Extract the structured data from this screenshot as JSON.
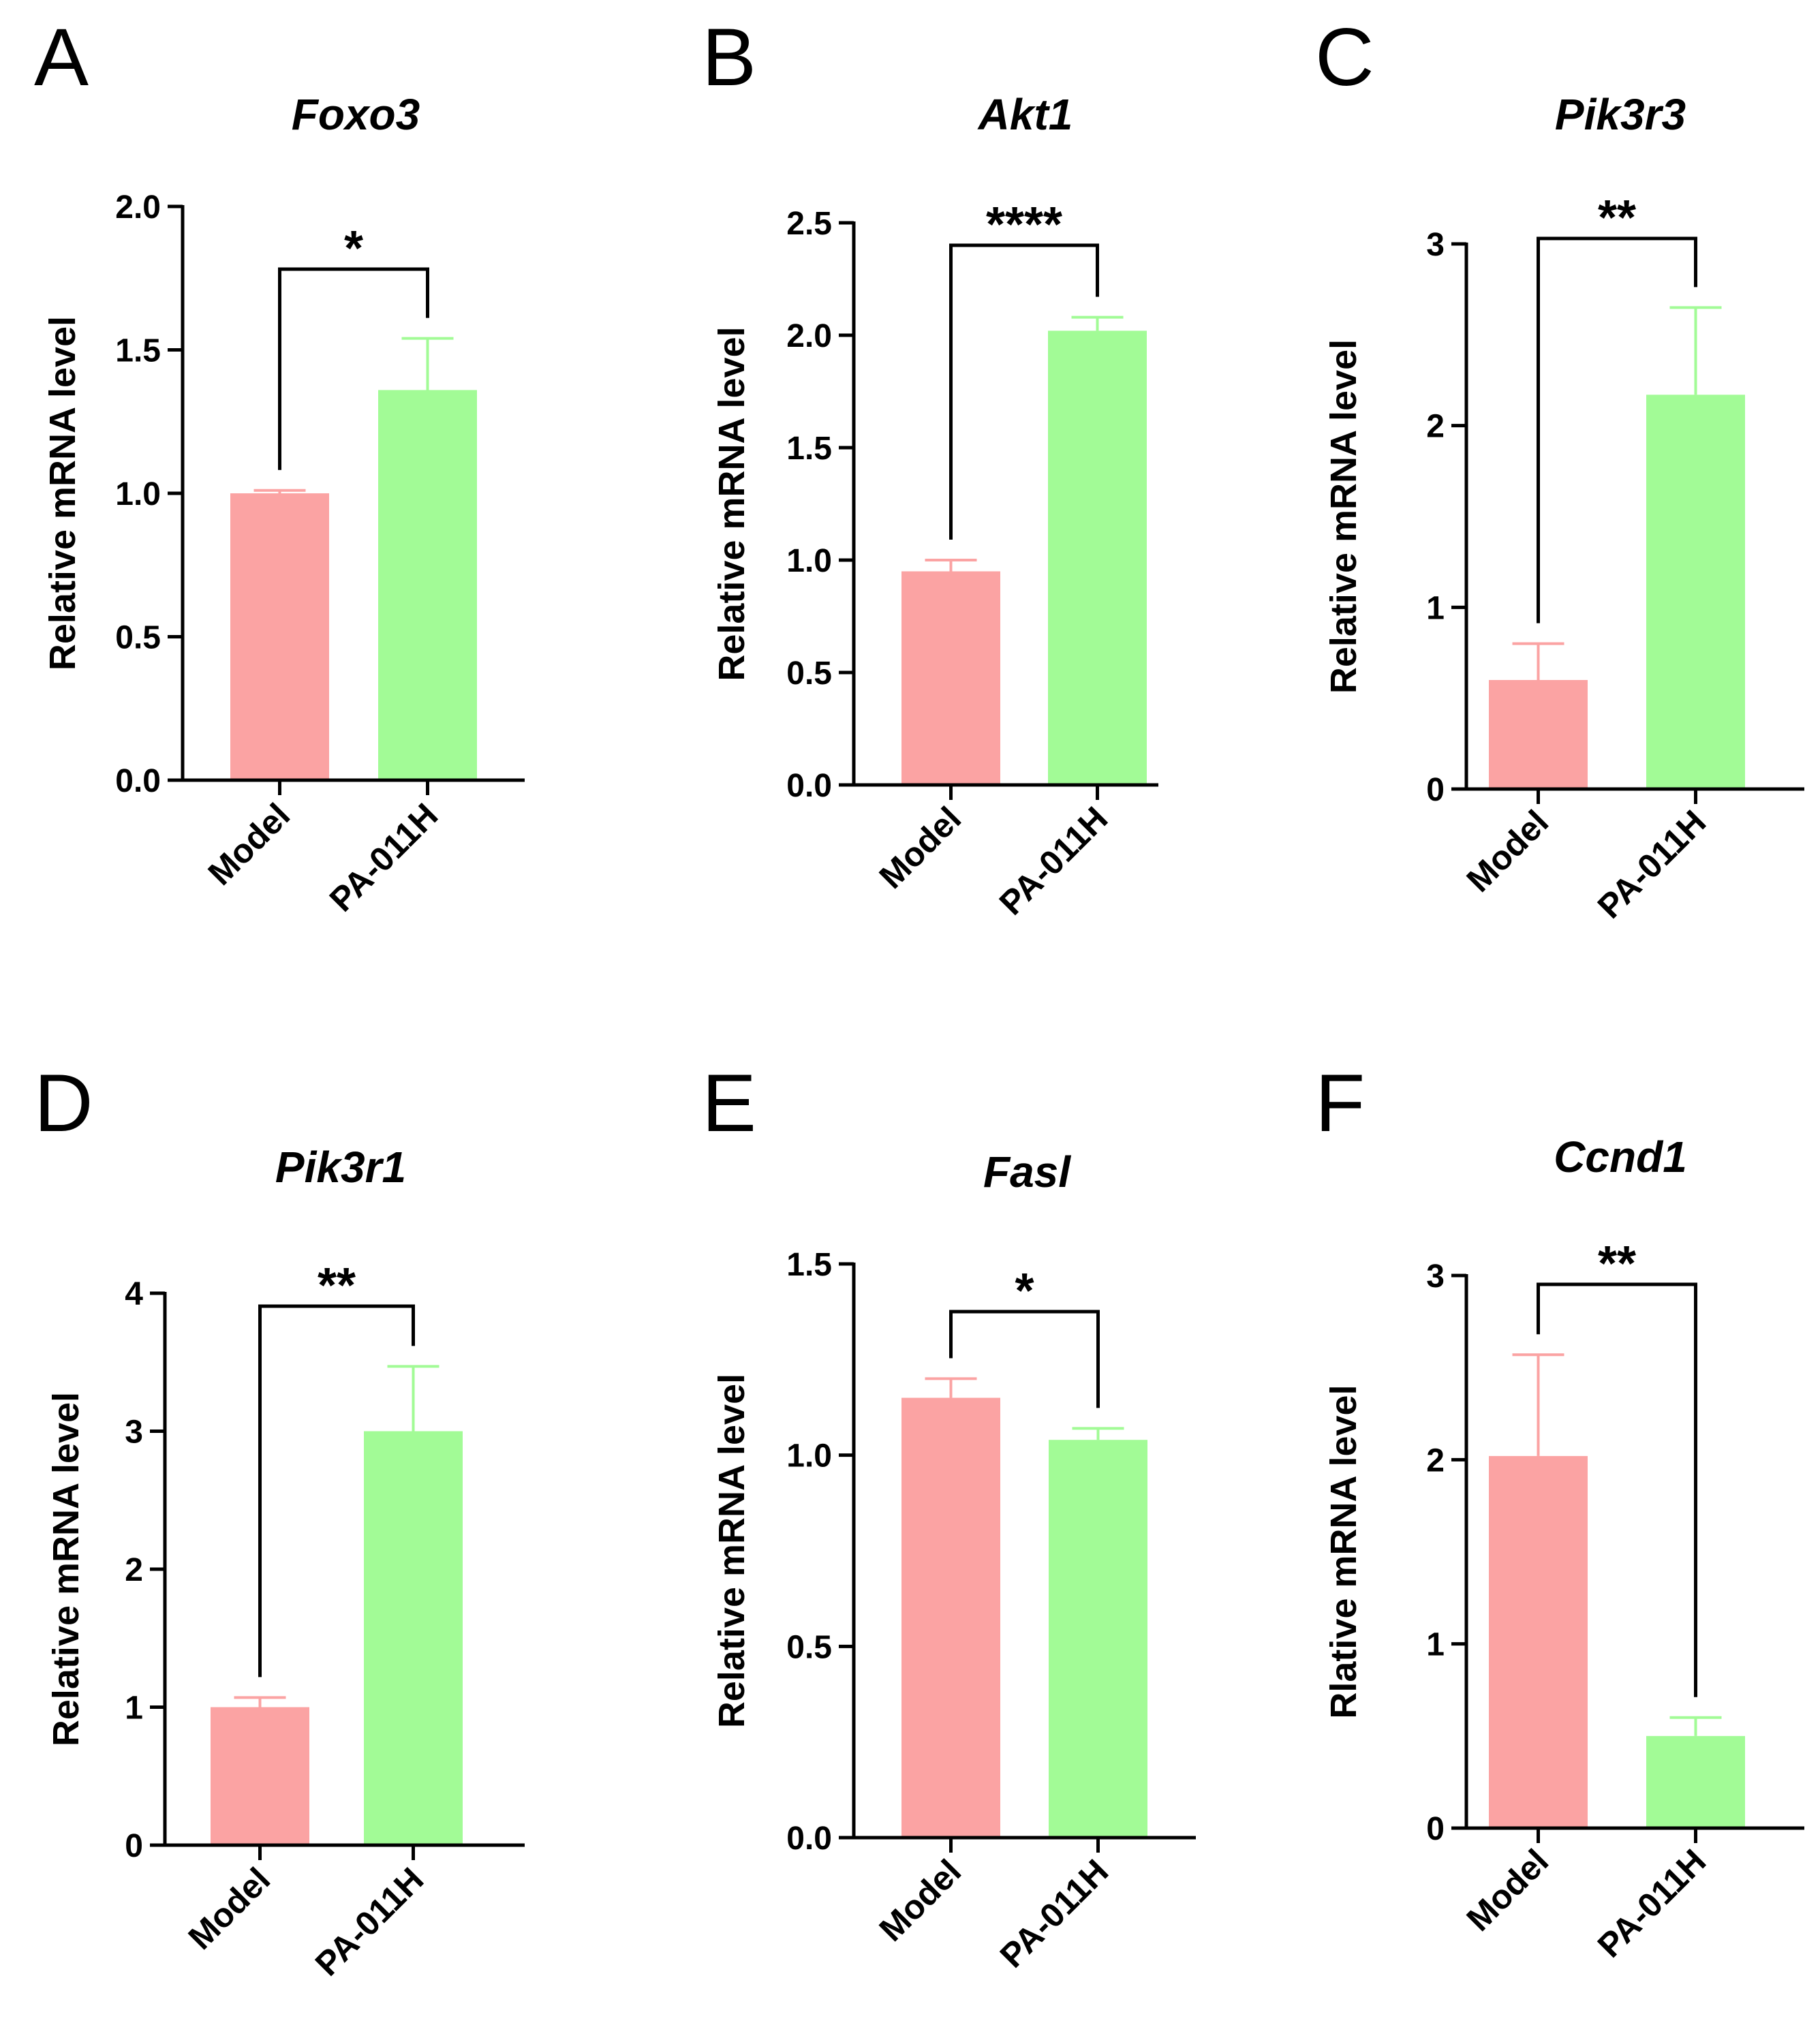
{
  "chart_data": [
    {
      "panel": "A",
      "type": "bar",
      "title": "Foxo3",
      "ylabel": "Relative mRNA level",
      "categories": [
        "Model",
        "PA-011H"
      ],
      "values": [
        1.0,
        1.36
      ],
      "errors": [
        0.01,
        0.18
      ],
      "ylim": [
        0,
        2.0
      ],
      "yticks": [
        "0.0",
        "0.5",
        "1.0",
        "1.5",
        "2.0"
      ],
      "significance": "*"
    },
    {
      "panel": "B",
      "type": "bar",
      "title": "Akt1",
      "ylabel": "Relative mRNA level",
      "categories": [
        "Model",
        "PA-011H"
      ],
      "values": [
        0.95,
        2.02
      ],
      "errors": [
        0.05,
        0.06
      ],
      "ylim": [
        0,
        2.5
      ],
      "yticks": [
        "0.0",
        "0.5",
        "1.0",
        "1.5",
        "2.0",
        "2.5"
      ],
      "significance": "****"
    },
    {
      "panel": "C",
      "type": "bar",
      "title": "Pik3r3",
      "ylabel": "Relative mRNA level",
      "categories": [
        "Model",
        "PA-011H"
      ],
      "values": [
        0.6,
        2.17
      ],
      "errors": [
        0.2,
        0.48
      ],
      "ylim": [
        0,
        3
      ],
      "yticks": [
        "0",
        "1",
        "2",
        "3"
      ],
      "significance": "**"
    },
    {
      "panel": "D",
      "type": "bar",
      "title": "Pik3r1",
      "ylabel": "Relative mRNA level",
      "categories": [
        "Model",
        "PA-011H"
      ],
      "values": [
        1.0,
        3.0
      ],
      "errors": [
        0.07,
        0.47
      ],
      "ylim": [
        0,
        4
      ],
      "yticks": [
        "0",
        "1",
        "2",
        "3",
        "4"
      ],
      "significance": "**"
    },
    {
      "panel": "E",
      "type": "bar",
      "title": "Fasl",
      "ylabel": "Relative mRNA level",
      "categories": [
        "Model",
        "PA-011H"
      ],
      "values": [
        1.15,
        1.04
      ],
      "errors": [
        0.05,
        0.03
      ],
      "ylim": [
        0,
        1.5
      ],
      "yticks": [
        "0.0",
        "0.5",
        "1.0",
        "1.5"
      ],
      "significance": "*"
    },
    {
      "panel": "F",
      "type": "bar",
      "title": "Ccnd1",
      "ylabel": "Rlative mRNA level",
      "categories": [
        "Model",
        "PA-011H"
      ],
      "values": [
        2.02,
        0.5
      ],
      "errors": [
        0.55,
        0.1
      ],
      "ylim": [
        0,
        3
      ],
      "yticks": [
        "0",
        "1",
        "2",
        "3"
      ],
      "significance": "**"
    }
  ],
  "colors": {
    "model": "#FBA3A3",
    "treated": "#A2FB96",
    "axis": "#000000"
  }
}
